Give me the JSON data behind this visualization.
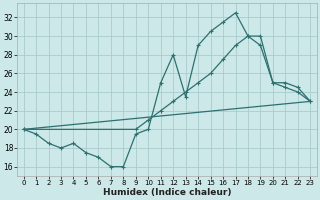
{
  "xlabel": "Humidex (Indice chaleur)",
  "background_color": "#cde8e8",
  "grid_color": "#aacccc",
  "line_color": "#2d7070",
  "xlim": [
    -0.5,
    23.5
  ],
  "ylim": [
    15.0,
    33.5
  ],
  "xticks": [
    0,
    1,
    2,
    3,
    4,
    5,
    6,
    7,
    8,
    9,
    10,
    11,
    12,
    13,
    14,
    15,
    16,
    17,
    18,
    19,
    20,
    21,
    22,
    23
  ],
  "yticks": [
    16,
    18,
    20,
    22,
    24,
    26,
    28,
    30,
    32
  ],
  "line1_x": [
    0,
    1,
    2,
    3,
    4,
    5,
    6,
    7,
    8,
    9,
    10,
    11,
    12,
    13,
    14,
    15,
    16,
    17,
    18,
    19,
    20,
    21,
    22,
    23
  ],
  "line1_y": [
    20,
    19.5,
    18.5,
    18,
    18.5,
    17.5,
    17,
    16,
    16,
    19.5,
    20.0,
    25,
    28,
    23.5,
    29,
    30.5,
    31.5,
    32.5,
    30,
    30,
    25,
    24.5,
    24,
    23
  ],
  "line2_x": [
    0,
    23
  ],
  "line2_y": [
    20,
    23
  ],
  "line3_x": [
    0,
    9,
    10,
    11,
    12,
    13,
    14,
    15,
    16,
    17,
    18,
    19,
    20,
    21,
    22,
    23
  ],
  "line3_y": [
    20,
    20,
    21,
    22,
    23,
    24,
    25,
    26,
    27.5,
    29,
    30,
    29,
    25,
    25,
    24.5,
    23
  ]
}
